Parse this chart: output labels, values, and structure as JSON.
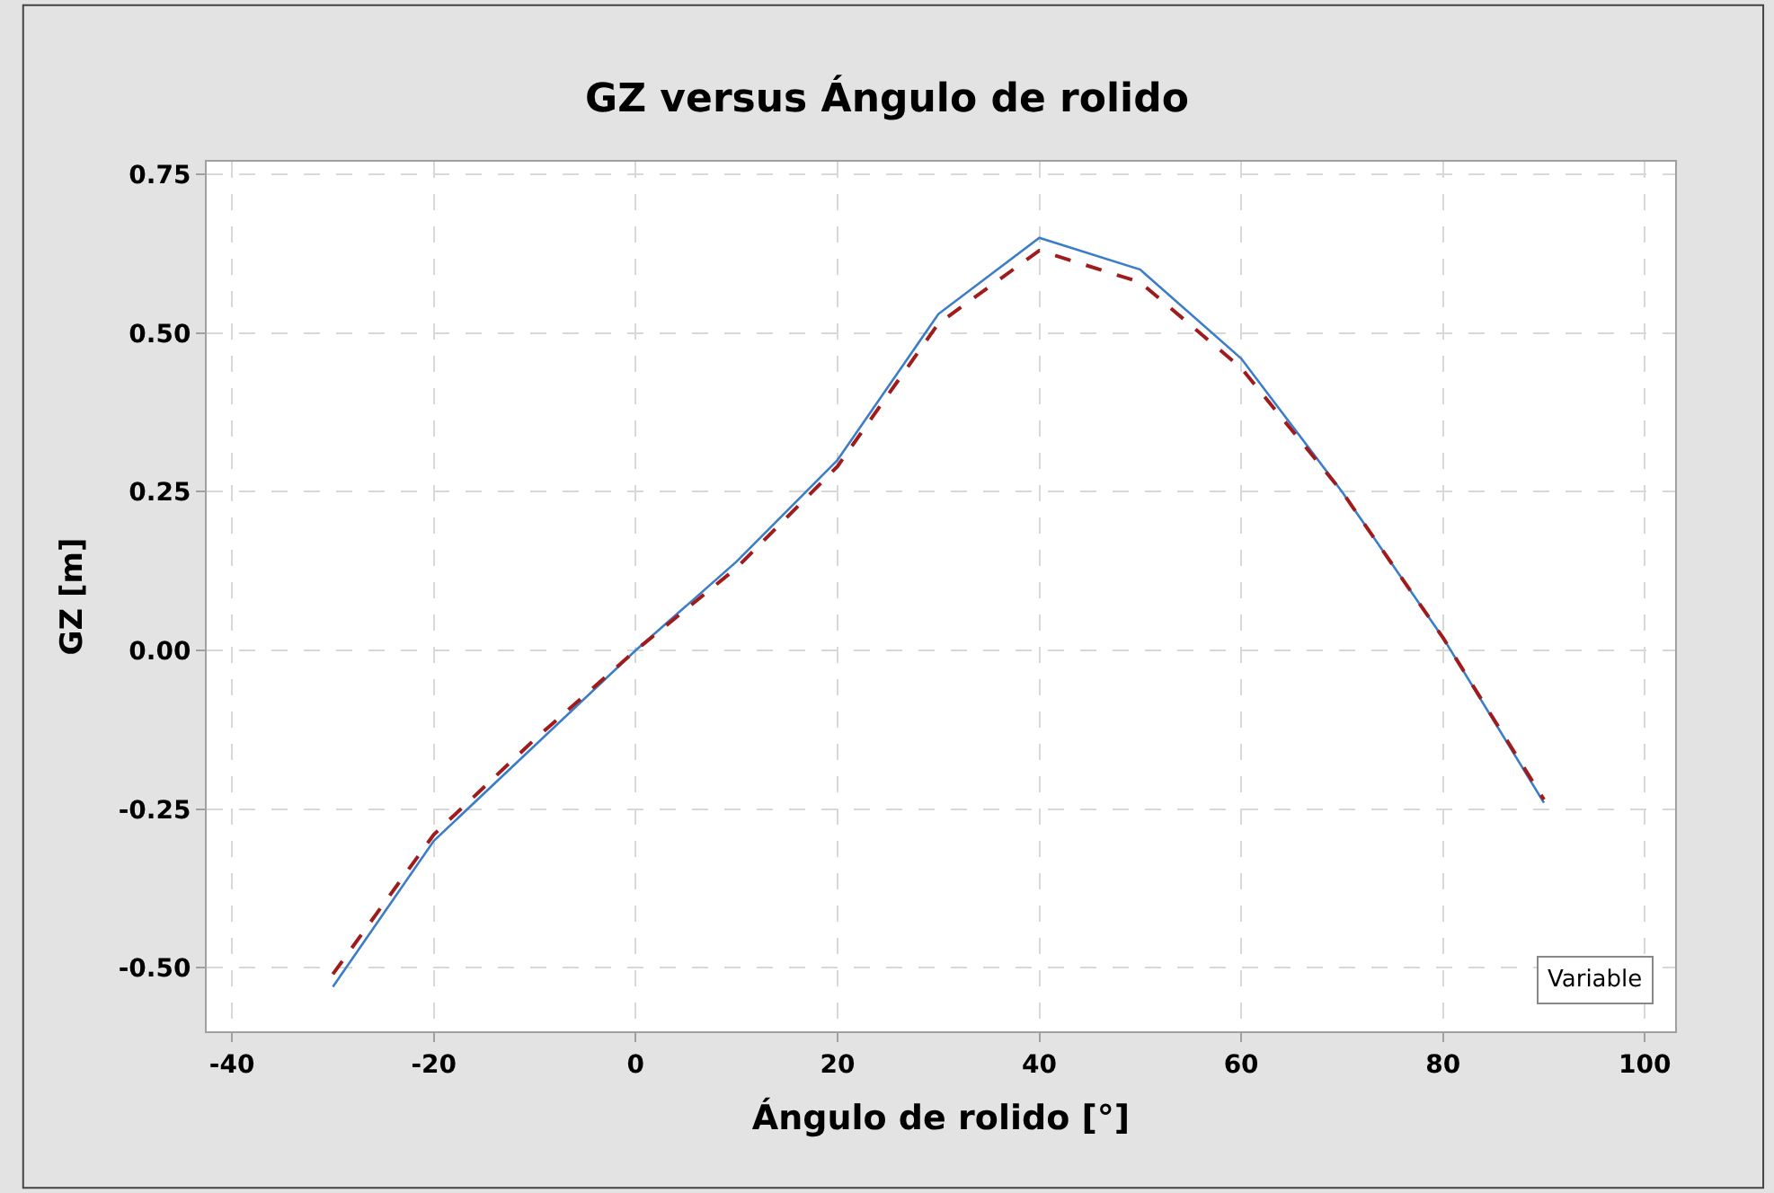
{
  "chart_data": {
    "type": "line",
    "title": "GZ versus Ángulo de rolido",
    "xlabel": "Ángulo de rolido [°]",
    "ylabel": "GZ [m]",
    "annotations": [
      "Variable"
    ],
    "x": [
      -30,
      -20,
      -10,
      0,
      10,
      20,
      30,
      40,
      50,
      60,
      70,
      80,
      90
    ],
    "series": [
      {
        "color": "#3b7dc8",
        "line_style": "solid",
        "values": [
          -0.53,
          -0.3,
          -0.15,
          0,
          0.14,
          0.3,
          0.53,
          0.65,
          0.6,
          0.46,
          0.25,
          0.02,
          -0.24
        ]
      },
      {
        "color": "#a01c1c",
        "line_style": "dashed",
        "values": [
          -0.51,
          -0.29,
          -0.14,
          0,
          0.13,
          0.29,
          0.515,
          0.63,
          0.58,
          0.445,
          0.25,
          0.02,
          -0.235
        ]
      }
    ],
    "xlim": [
      -42.5,
      103
    ],
    "xticks": [
      -40,
      -20,
      0,
      20,
      40,
      60,
      80,
      100
    ],
    "ylim": [
      -0.6,
      0.77
    ],
    "yticks": [
      {
        "value": -0.5,
        "label": "-0.50"
      },
      {
        "value": -0.25,
        "label": "-0.25"
      },
      {
        "value": 0,
        "label": "0.00"
      },
      {
        "value": 0.25,
        "label": "0.25"
      },
      {
        "value": 0.5,
        "label": "0.50"
      },
      {
        "value": 0.75,
        "label": "0.75"
      }
    ],
    "grid": true,
    "marker": "none"
  }
}
